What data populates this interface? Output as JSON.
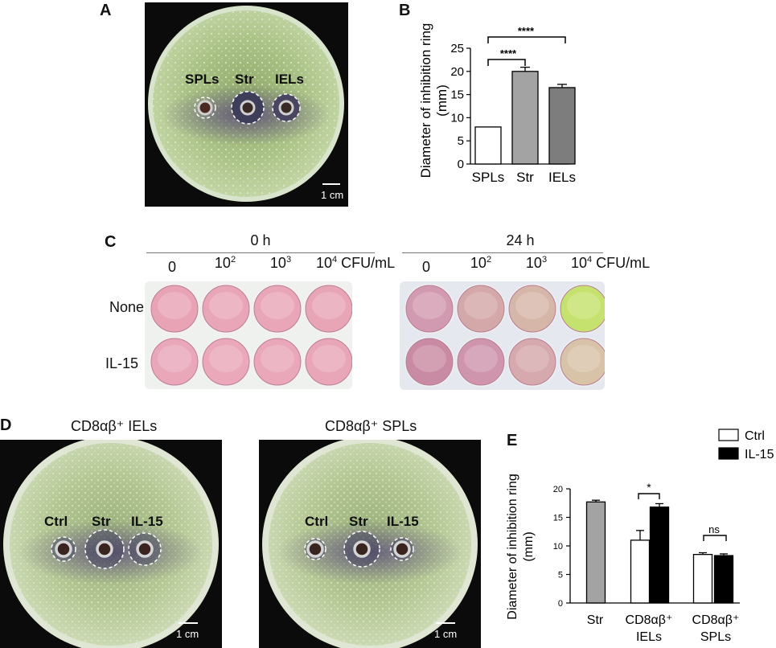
{
  "panelA": {
    "letter": "A",
    "wells": [
      "SPLs",
      "Str",
      "IELs"
    ],
    "scale": "1 cm"
  },
  "panelB": {
    "letter": "B",
    "ylabel_line1": "Diameter of inhibition ring",
    "ylabel_line2": "(mm)",
    "sig": [
      "****",
      "****"
    ]
  },
  "panelC": {
    "letter": "C",
    "time_left": "0 h",
    "time_right": "24 h",
    "doses": [
      "0",
      "10",
      "10",
      "10"
    ],
    "dose_exp": [
      "",
      "2",
      "3",
      "4"
    ],
    "unit": "CFU/mL",
    "rows": [
      "None",
      "IL-15"
    ],
    "well_colors_left": [
      [
        "#e8a3b5",
        "#e9a6b8",
        "#e8a6b8",
        "#e8a5b6"
      ],
      [
        "#eaa7ba",
        "#eaa8ba",
        "#e9a7b9",
        "#e9a6b9"
      ]
    ],
    "well_colors_right": [
      [
        "#d29ab0",
        "#d4a8a8",
        "#d6b6a9",
        "#c6e26e"
      ],
      [
        "#c98aa3",
        "#cf95ad",
        "#d5a9ad",
        "#d9c3a8"
      ]
    ]
  },
  "panelD": {
    "letter": "D",
    "title_left": "CD8αβ⁺ IELs",
    "title_right": "CD8αβ⁺ SPLs",
    "wells": [
      "Ctrl",
      "Str",
      "IL-15"
    ],
    "scale": "1 cm"
  },
  "panelE": {
    "letter": "E",
    "ylabel_line1": "Diameter of inhibition ring",
    "ylabel_line2": "(mm)",
    "legend": [
      {
        "name": "Ctrl",
        "color": "#ffffff"
      },
      {
        "name": "IL-15",
        "color": "#000000"
      }
    ],
    "sig": [
      "*",
      "ns"
    ],
    "group_labels": [
      [
        "Str"
      ],
      [
        "CD8αβ⁺",
        "IELs"
      ],
      [
        "CD8αβ⁺",
        "SPLs"
      ]
    ]
  },
  "chart_data": [
    {
      "type": "bar",
      "categories": [
        "SPLs",
        "Str",
        "IELs"
      ],
      "values": [
        8.0,
        20.0,
        16.5
      ],
      "errors": [
        0,
        0.9,
        0.7
      ],
      "colors": [
        "#ffffff",
        "#a3a3a3",
        "#7d7d7d"
      ],
      "ylim": [
        0,
        25
      ],
      "yticks": [
        0,
        5,
        10,
        15,
        20,
        25
      ],
      "ylabel": "Diameter of inhibition ring (mm)"
    },
    {
      "type": "bar",
      "categories": [
        "Str",
        "CD8αβ⁺ IELs",
        "CD8αβ⁺ SPLs"
      ],
      "series": [
        {
          "name": "Str",
          "values": [
            17.7,
            null,
            null
          ],
          "errors": [
            0.3,
            null,
            null
          ],
          "color": "#a3a3a3"
        },
        {
          "name": "Ctrl",
          "values": [
            null,
            11.0,
            8.5
          ],
          "errors": [
            null,
            1.7,
            0.3
          ],
          "color": "#ffffff"
        },
        {
          "name": "IL-15",
          "values": [
            null,
            16.8,
            8.3
          ],
          "errors": [
            null,
            0.6,
            0.3
          ],
          "color": "#000000"
        }
      ],
      "ylim": [
        0,
        20
      ],
      "yticks": [
        0,
        5,
        10,
        15,
        20
      ],
      "ylabel": "Diameter of inhibition ring (mm)"
    }
  ]
}
